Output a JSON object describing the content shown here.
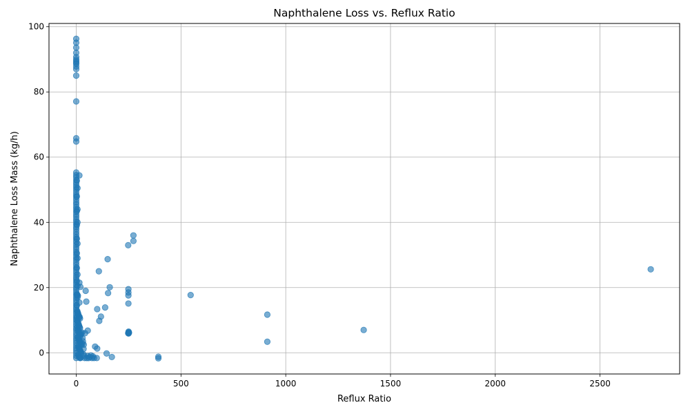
{
  "chart_data": {
    "type": "scatter",
    "title": "Naphthalene Loss vs. Reflux Ratio",
    "xlabel": "Reflux Ratio",
    "ylabel": "Naphthalene Loss Mass (kg/h)",
    "xlim": [
      -130,
      2880
    ],
    "ylim": [
      -6.5,
      101
    ],
    "xticks": [
      0,
      500,
      1000,
      1500,
      2000,
      2500
    ],
    "yticks": [
      0,
      20,
      40,
      60,
      80,
      100
    ],
    "grid": true,
    "legend": "none",
    "marker_color": "#1f77b4",
    "marker_alpha": 0.6,
    "points": [
      [
        0,
        96.3
      ],
      [
        0,
        95.1
      ],
      [
        0,
        93.6
      ],
      [
        0,
        92.0
      ],
      [
        0,
        90.7
      ],
      [
        0,
        90.0
      ],
      [
        0,
        89.5
      ],
      [
        0,
        89.0
      ],
      [
        0,
        88.6
      ],
      [
        0,
        87.8
      ],
      [
        0,
        87.0
      ],
      [
        0,
        85.0
      ],
      [
        0,
        77.1
      ],
      [
        0,
        65.8
      ],
      [
        0,
        64.8
      ],
      [
        0,
        55.3
      ],
      [
        0,
        54.5
      ],
      [
        0,
        53.8
      ],
      [
        0,
        53.0
      ],
      [
        0,
        52.2
      ],
      [
        0,
        51.5
      ],
      [
        0,
        50.8
      ],
      [
        0,
        50.1
      ],
      [
        0,
        49.3
      ],
      [
        0,
        48.5
      ],
      [
        0,
        47.8
      ],
      [
        0,
        47.0
      ],
      [
        0,
        46.2
      ],
      [
        0,
        45.5
      ],
      [
        0,
        44.7
      ],
      [
        0,
        44.0
      ],
      [
        0,
        43.2
      ],
      [
        0,
        42.4
      ],
      [
        0,
        41.7
      ],
      [
        0,
        40.9
      ],
      [
        0,
        40.2
      ],
      [
        0,
        39.4
      ],
      [
        0,
        38.6
      ],
      [
        0,
        37.9
      ],
      [
        0,
        37.1
      ],
      [
        0,
        36.3
      ],
      [
        0,
        35.5
      ],
      [
        0,
        34.8
      ],
      [
        0,
        34.0
      ],
      [
        0,
        33.2
      ],
      [
        0,
        32.4
      ],
      [
        0,
        31.7
      ],
      [
        0,
        30.9
      ],
      [
        0,
        30.1
      ],
      [
        0,
        29.3
      ],
      [
        0,
        28.6
      ],
      [
        0,
        27.8
      ],
      [
        0,
        27.0
      ],
      [
        0,
        26.2
      ],
      [
        0,
        25.5
      ],
      [
        0,
        24.7
      ],
      [
        0,
        23.9
      ],
      [
        0,
        23.1
      ],
      [
        0,
        22.4
      ],
      [
        0,
        21.6
      ],
      [
        0,
        20.8
      ],
      [
        0,
        20.0
      ],
      [
        0,
        19.3
      ],
      [
        0,
        18.5
      ],
      [
        0,
        17.7
      ],
      [
        0,
        16.9
      ],
      [
        0,
        16.2
      ],
      [
        0,
        15.4
      ],
      [
        0,
        14.6
      ],
      [
        0,
        13.8
      ],
      [
        0,
        13.1
      ],
      [
        0,
        12.3
      ],
      [
        0,
        11.5
      ],
      [
        0,
        10.7
      ],
      [
        0,
        10.0
      ],
      [
        0,
        9.2
      ],
      [
        0,
        8.4
      ],
      [
        0,
        7.6
      ],
      [
        0,
        6.9
      ],
      [
        0,
        6.1
      ],
      [
        0,
        5.3
      ],
      [
        0,
        4.5
      ],
      [
        0,
        3.8
      ],
      [
        0,
        3.0
      ],
      [
        0,
        2.2
      ],
      [
        0,
        1.4
      ],
      [
        0,
        0.7
      ],
      [
        0,
        -0.1
      ],
      [
        0,
        -0.9
      ],
      [
        0,
        -1.6
      ],
      [
        3,
        52.8
      ],
      [
        3,
        48.0
      ],
      [
        3,
        43.5
      ],
      [
        3,
        39.2
      ],
      [
        3,
        35.0
      ],
      [
        3,
        30.5
      ],
      [
        3,
        26.0
      ],
      [
        3,
        22.0
      ],
      [
        3,
        18.0
      ],
      [
        3,
        14.5
      ],
      [
        3,
        11.0
      ],
      [
        6,
        50.5
      ],
      [
        6,
        44.0
      ],
      [
        6,
        40.0
      ],
      [
        6,
        33.5
      ],
      [
        6,
        29.0
      ],
      [
        6,
        24.0
      ],
      [
        6,
        20.5
      ],
      [
        6,
        17.0
      ],
      [
        6,
        12.5
      ],
      [
        6,
        8.0
      ],
      [
        5,
        12.8
      ],
      [
        8,
        12.2
      ],
      [
        10,
        11.8
      ],
      [
        12,
        11.3
      ],
      [
        14,
        10.8
      ],
      [
        16,
        11.0
      ],
      [
        18,
        10.5
      ],
      [
        5,
        9.8
      ],
      [
        8,
        9.5
      ],
      [
        10,
        9.0
      ],
      [
        12,
        8.6
      ],
      [
        14,
        8.2
      ],
      [
        16,
        7.9
      ],
      [
        18,
        7.6
      ],
      [
        8,
        7.0
      ],
      [
        10,
        6.7
      ],
      [
        12,
        6.4
      ],
      [
        14,
        6.1
      ],
      [
        16,
        5.8
      ],
      [
        18,
        5.5
      ],
      [
        20,
        5.2
      ],
      [
        22,
        5.6
      ],
      [
        24,
        6.0
      ],
      [
        8,
        4.8
      ],
      [
        10,
        4.5
      ],
      [
        12,
        4.2
      ],
      [
        14,
        3.9
      ],
      [
        16,
        3.6
      ],
      [
        18,
        3.3
      ],
      [
        20,
        3.0
      ],
      [
        22,
        2.7
      ],
      [
        24,
        2.4
      ],
      [
        10,
        2.0
      ],
      [
        12,
        1.7
      ],
      [
        14,
        1.4
      ],
      [
        16,
        1.1
      ],
      [
        18,
        0.8
      ],
      [
        20,
        0.5
      ],
      [
        22,
        0.2
      ],
      [
        24,
        -0.1
      ],
      [
        10,
        -0.6
      ],
      [
        12,
        -0.9
      ],
      [
        14,
        -1.2
      ],
      [
        16,
        -1.5
      ],
      [
        18,
        -1.6
      ],
      [
        20,
        -1.6
      ],
      [
        5,
        17.8
      ],
      [
        8,
        17.5
      ],
      [
        15,
        54.4
      ],
      [
        15,
        21.5
      ],
      [
        20,
        20.2
      ],
      [
        15,
        15.4
      ],
      [
        28,
        6.2
      ],
      [
        30,
        4.5
      ],
      [
        30,
        2.8
      ],
      [
        32,
        3.5
      ],
      [
        35,
        1.2
      ],
      [
        35,
        -0.5
      ],
      [
        38,
        -1.0
      ],
      [
        40,
        -1.6
      ],
      [
        36,
        2.5
      ],
      [
        42,
        6.0
      ],
      [
        45,
        19.0
      ],
      [
        48,
        15.7
      ],
      [
        55,
        6.8
      ],
      [
        50,
        -1.6
      ],
      [
        55,
        -1.0
      ],
      [
        60,
        -1.6
      ],
      [
        65,
        -1.3
      ],
      [
        70,
        -0.8
      ],
      [
        75,
        -1.6
      ],
      [
        80,
        -1.1
      ],
      [
        85,
        -1.6
      ],
      [
        90,
        1.9
      ],
      [
        100,
        13.4
      ],
      [
        100,
        1.3
      ],
      [
        98,
        -1.6
      ],
      [
        108,
        25.0
      ],
      [
        110,
        9.8
      ],
      [
        118,
        11.1
      ],
      [
        138,
        13.9
      ],
      [
        145,
        -0.2
      ],
      [
        150,
        28.7
      ],
      [
        152,
        18.3
      ],
      [
        160,
        20.1
      ],
      [
        170,
        -1.3
      ],
      [
        248,
        33.0
      ],
      [
        249,
        19.5
      ],
      [
        249,
        18.5
      ],
      [
        249,
        17.6
      ],
      [
        249,
        15.1
      ],
      [
        250,
        6.5
      ],
      [
        250,
        6.3
      ],
      [
        250,
        6.1
      ],
      [
        250,
        5.9
      ],
      [
        252,
        6.2
      ],
      [
        248,
        6.0
      ],
      [
        273,
        36.0
      ],
      [
        273,
        34.3
      ],
      [
        392,
        -1.2
      ],
      [
        392,
        -1.7
      ],
      [
        546,
        17.7
      ],
      [
        912,
        11.7
      ],
      [
        912,
        3.4
      ],
      [
        1372,
        7.0
      ],
      [
        2742,
        25.6
      ]
    ]
  }
}
